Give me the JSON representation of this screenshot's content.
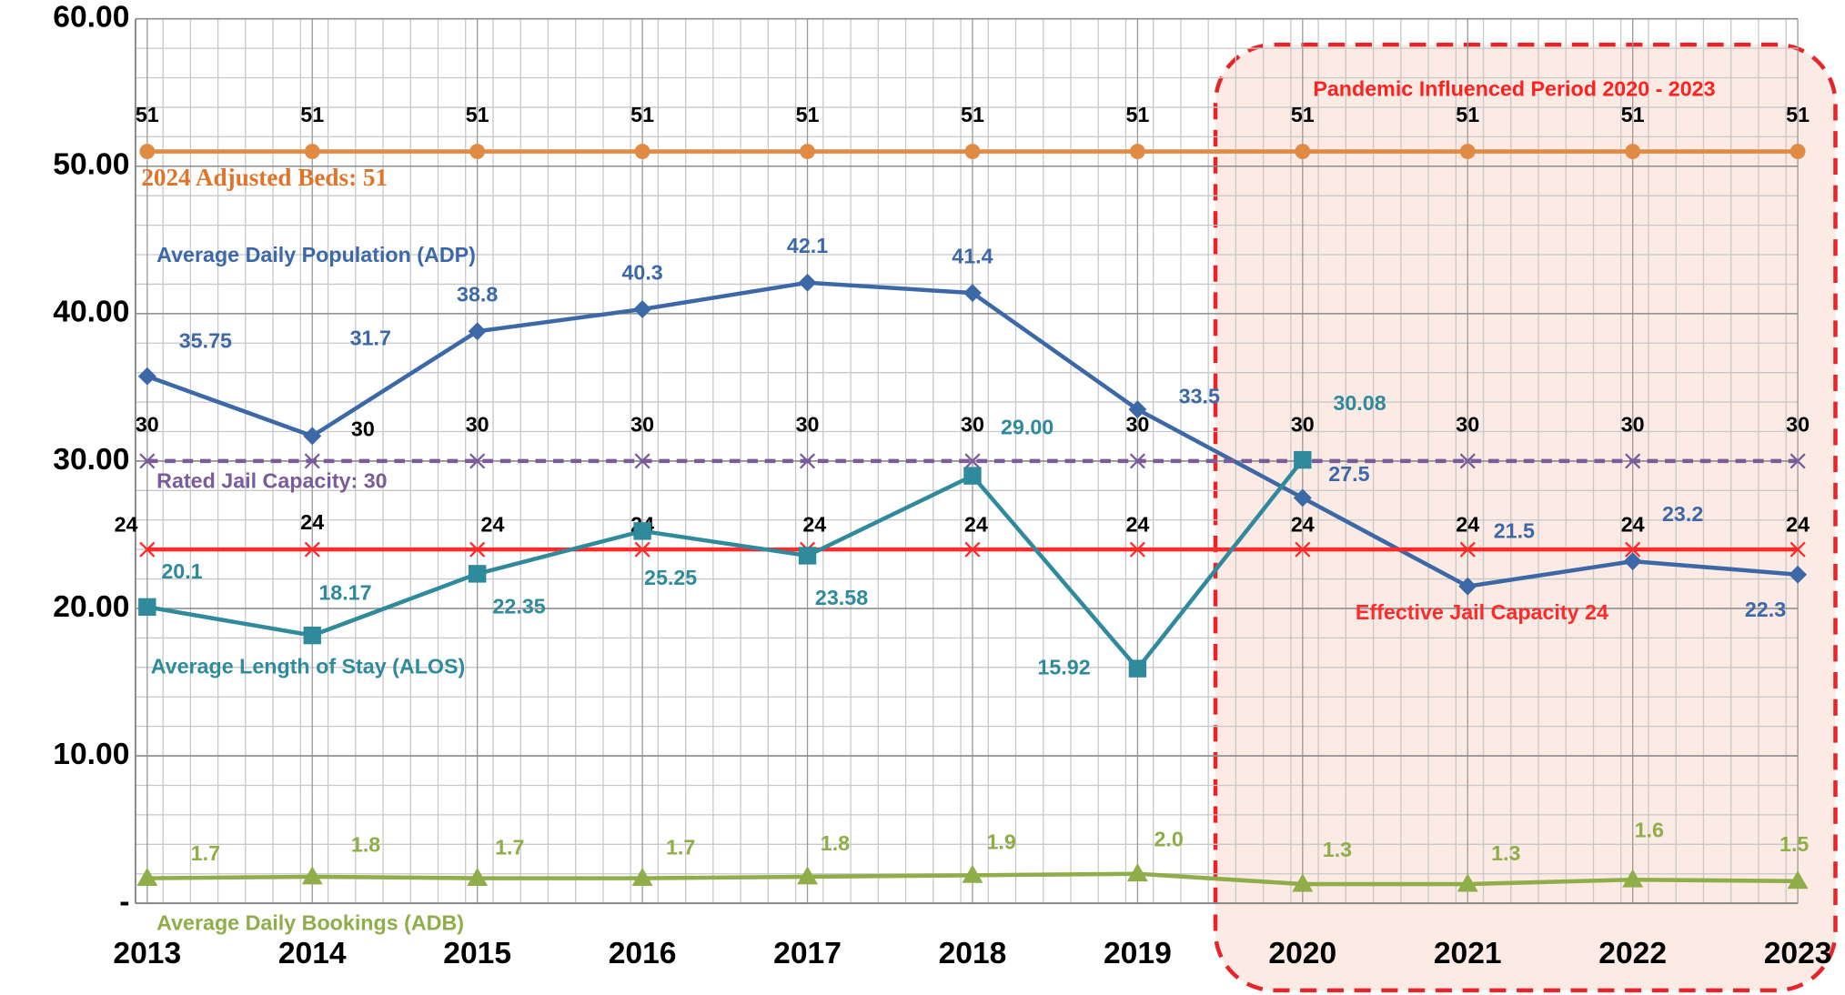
{
  "chart_data": {
    "type": "line",
    "categories": [
      "2013",
      "2014",
      "2015",
      "2016",
      "2017",
      "2018",
      "2019",
      "2020",
      "2021",
      "2022",
      "2023"
    ],
    "ylim": [
      0,
      60
    ],
    "yticks": [
      {
        "value": 0,
        "label": "-"
      },
      {
        "value": 10,
        "label": "10.00"
      },
      {
        "value": 20,
        "label": "20.00"
      },
      {
        "value": 30,
        "label": "30.00"
      },
      {
        "value": 40,
        "label": "40.00"
      },
      {
        "value": 50,
        "label": "50.00"
      },
      {
        "value": 60,
        "label": "60.00"
      }
    ],
    "grid": true,
    "annotations": [
      "Pandemic Influenced Period 2020 - 2023"
    ],
    "series": [
      {
        "name": "2024 Adjusted Beds: 51",
        "color": "#e08a43",
        "marker": "circle",
        "values": [
          51,
          51,
          51,
          51,
          51,
          51,
          51,
          51,
          51,
          51,
          51
        ]
      },
      {
        "name": "Average Daily Population (ADP)",
        "color": "#3d68a8",
        "marker": "diamond",
        "values": [
          35.75,
          31.7,
          38.8,
          40.3,
          42.1,
          41.4,
          33.5,
          27.5,
          21.5,
          23.2,
          22.3
        ]
      },
      {
        "name": "Rated Jail Capacity: 30",
        "color": "#7a5c9a",
        "marker": "x",
        "dashed": true,
        "values": [
          30,
          30,
          30,
          30,
          30,
          30,
          30,
          30,
          30,
          30,
          30
        ]
      },
      {
        "name": "Effective Jail Capacity 24",
        "color": "#ff2a2a",
        "marker": "x",
        "values": [
          24,
          24,
          24,
          24,
          24,
          24,
          24,
          24,
          24,
          24,
          24
        ]
      },
      {
        "name": "Average Length of Stay (ALOS)",
        "color": "#2f8a9b",
        "marker": "square",
        "values": [
          20.1,
          18.17,
          22.35,
          25.25,
          23.58,
          29,
          15.92,
          30.08,
          null,
          null,
          null
        ],
        "value_labels": [
          "20.1",
          "18.17",
          "22.35",
          "25.25",
          "23.58",
          "29.00",
          "15.92",
          "30.08",
          null,
          null,
          null
        ]
      },
      {
        "name": "Average Daily Bookings (ADB)",
        "color": "#8fae4a",
        "marker": "triangle",
        "values": [
          1.7,
          1.8,
          1.7,
          1.7,
          1.8,
          1.9,
          2.0,
          1.3,
          1.3,
          1.6,
          1.5
        ],
        "value_labels": [
          "1.7",
          "1.8",
          "1.7",
          "1.7",
          "1.8",
          "1.9",
          "2.0",
          "1.3",
          "1.3",
          "1.6",
          "1.5"
        ]
      }
    ]
  }
}
